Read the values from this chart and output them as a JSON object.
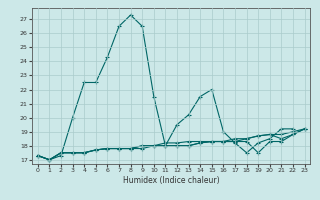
{
  "xlabel": "Humidex (Indice chaleur)",
  "background_color": "#cce8e8",
  "grid_color": "#aacccc",
  "line_color": "#006666",
  "xlim": [
    -0.5,
    23.5
  ],
  "ylim": [
    16.7,
    27.8
  ],
  "yticks": [
    17,
    18,
    19,
    20,
    21,
    22,
    23,
    24,
    25,
    26,
    27
  ],
  "xticks": [
    0,
    1,
    2,
    3,
    4,
    5,
    6,
    7,
    8,
    9,
    10,
    11,
    12,
    13,
    14,
    15,
    16,
    17,
    18,
    19,
    20,
    21,
    22,
    23
  ],
  "series": [
    {
      "x": [
        0,
        1,
        2,
        3,
        4,
        5,
        6,
        7,
        8,
        9,
        10,
        11,
        12,
        13,
        14,
        15,
        16,
        17,
        18,
        19,
        20,
        21,
        22
      ],
      "y": [
        17.3,
        17.0,
        17.3,
        20.0,
        22.5,
        22.5,
        24.3,
        26.5,
        27.3,
        26.5,
        21.5,
        18.0,
        19.5,
        20.2,
        21.5,
        22.0,
        19.0,
        18.2,
        17.5,
        18.2,
        18.5,
        19.2,
        19.2
      ]
    },
    {
      "x": [
        0,
        1,
        2,
        3,
        4,
        5,
        6,
        7,
        8,
        9,
        10,
        11,
        12,
        13,
        14,
        15,
        16,
        17,
        18,
        19,
        20,
        21,
        22,
        23
      ],
      "y": [
        17.3,
        17.0,
        17.5,
        17.5,
        17.5,
        17.7,
        17.8,
        17.8,
        17.8,
        18.0,
        18.0,
        18.0,
        18.0,
        18.0,
        18.2,
        18.3,
        18.3,
        18.3,
        18.5,
        18.7,
        18.8,
        18.8,
        19.0,
        19.2
      ]
    },
    {
      "x": [
        0,
        1,
        2,
        3,
        4,
        5,
        6,
        7,
        8,
        9,
        10,
        11,
        12,
        13,
        14,
        15,
        16,
        17,
        18,
        19,
        20,
        21,
        22,
        23
      ],
      "y": [
        17.3,
        17.0,
        17.5,
        17.5,
        17.5,
        17.7,
        17.8,
        17.8,
        17.8,
        18.0,
        18.0,
        18.2,
        18.2,
        18.3,
        18.3,
        18.3,
        18.3,
        18.5,
        18.5,
        18.7,
        18.8,
        18.5,
        18.8,
        19.2
      ]
    },
    {
      "x": [
        0,
        1,
        2,
        3,
        4,
        5,
        6,
        7,
        8,
        9,
        10,
        11,
        12,
        13,
        14,
        15,
        16,
        17,
        18,
        19,
        20,
        21,
        22,
        23
      ],
      "y": [
        17.3,
        17.0,
        17.5,
        17.5,
        17.5,
        17.7,
        17.8,
        17.8,
        17.8,
        17.8,
        18.0,
        18.0,
        18.0,
        18.0,
        18.2,
        18.3,
        18.3,
        18.3,
        18.3,
        17.5,
        18.3,
        18.3,
        18.8,
        19.2
      ]
    }
  ]
}
